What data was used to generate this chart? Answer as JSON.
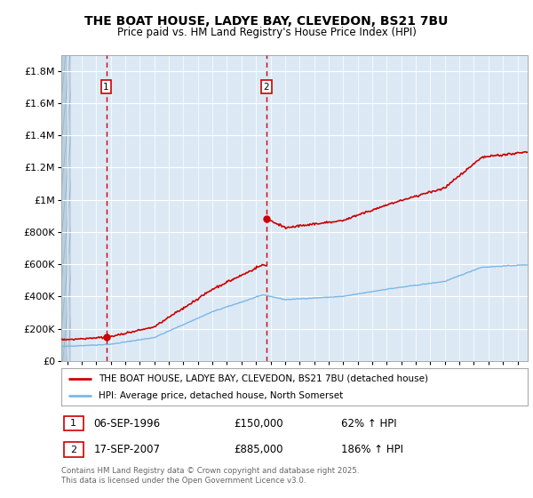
{
  "title": "THE BOAT HOUSE, LADYE BAY, CLEVEDON, BS21 7BU",
  "subtitle": "Price paid vs. HM Land Registry's House Price Index (HPI)",
  "background_color": "#dce9f5",
  "plot_bg_color": "#dce9f5",
  "ylim": [
    0,
    1900000
  ],
  "yticks": [
    0,
    200000,
    400000,
    600000,
    800000,
    1000000,
    1200000,
    1400000,
    1600000,
    1800000
  ],
  "ytick_labels": [
    "£0",
    "£200K",
    "£400K",
    "£600K",
    "£800K",
    "£1M",
    "£1.2M",
    "£1.4M",
    "£1.6M",
    "£1.8M"
  ],
  "xlim_start": 1993.6,
  "xlim_end": 2025.7,
  "sale1_year": 1996.69,
  "sale1_price": 150000,
  "sale2_year": 2007.71,
  "sale2_price": 885000,
  "hpi_line_color": "#7ab8e8",
  "price_line_color": "#cc0000",
  "sale_dot_color": "#cc0000",
  "vline_color": "#cc0000",
  "legend_label1": "THE BOAT HOUSE, LADYE BAY, CLEVEDON, BS21 7BU (detached house)",
  "legend_label2": "HPI: Average price, detached house, North Somerset",
  "footer_text": "Contains HM Land Registry data © Crown copyright and database right 2025.\nThis data is licensed under the Open Government Licence v3.0.",
  "note1_date": "06-SEP-1996",
  "note1_price": "£150,000",
  "note1_hpi": "62% ↑ HPI",
  "note2_date": "17-SEP-2007",
  "note2_price": "£885,000",
  "note2_hpi": "186% ↑ HPI"
}
